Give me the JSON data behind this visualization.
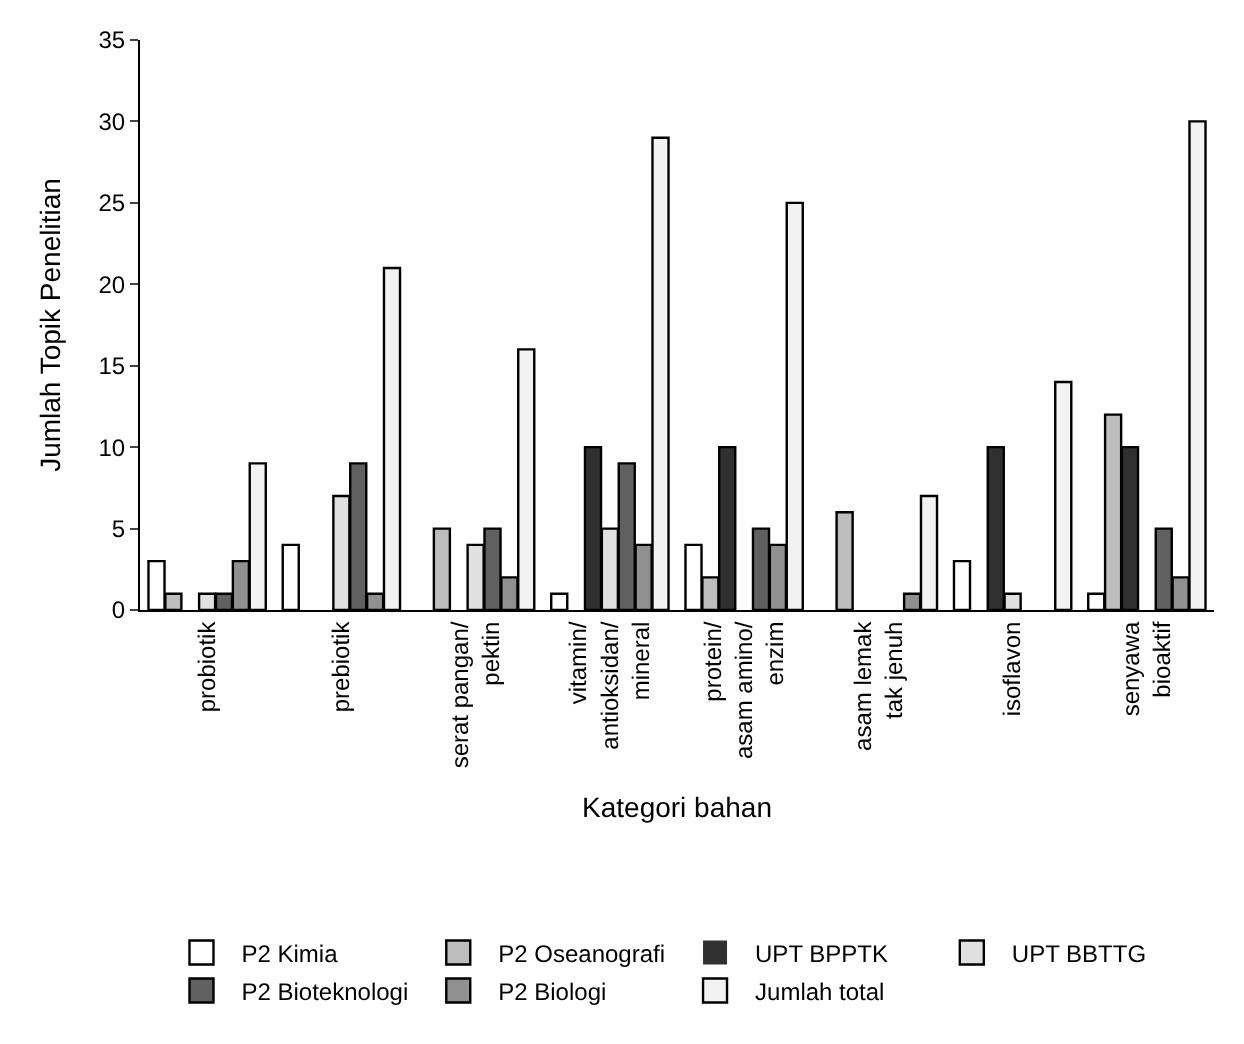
{
  "chart_data": {
    "type": "bar",
    "xlabel": "Kategori bahan",
    "ylabel": "Jumlah Topik Penelitian",
    "categories": [
      "probiotik",
      "prebiotik",
      "serat pangan/\npektin",
      "vitamin/\nantioksidan/\nmineral",
      "protein/\nasam amino/\nenzim",
      "asam lemak\ntak jenuh",
      "isoflavon",
      "senyawa\nbioaktif"
    ],
    "series": [
      {
        "name": "P2 Kimia",
        "color": "#ffffff",
        "values": [
          3,
          4,
          0,
          1,
          4,
          0,
          3,
          1
        ]
      },
      {
        "name": "P2 Oseanografi",
        "color": "#bdbdbd",
        "values": [
          1,
          0,
          5,
          0,
          2,
          6,
          0,
          12
        ]
      },
      {
        "name": "UPT BPPTK",
        "color": "#303030",
        "values": [
          0,
          0,
          0,
          10,
          10,
          0,
          10,
          10
        ]
      },
      {
        "name": "UPT BBTTG",
        "color": "#e0e0e0",
        "values": [
          1,
          7,
          4,
          5,
          0,
          0,
          1,
          0
        ]
      },
      {
        "name": "P2 Bioteknologi",
        "color": "#606060",
        "values": [
          1,
          9,
          5,
          9,
          5,
          0,
          0,
          5
        ]
      },
      {
        "name": "P2 Biologi",
        "color": "#909090",
        "values": [
          3,
          1,
          2,
          4,
          4,
          1,
          0,
          2
        ]
      },
      {
        "name": "Jumlah total",
        "color": "#f2f2f2",
        "values": [
          9,
          21,
          16,
          29,
          25,
          7,
          14,
          30
        ]
      }
    ],
    "ylim": [
      0,
      35
    ],
    "yticks": [
      0,
      5,
      10,
      15,
      20,
      25,
      30,
      35
    ],
    "legend": "bottom"
  }
}
